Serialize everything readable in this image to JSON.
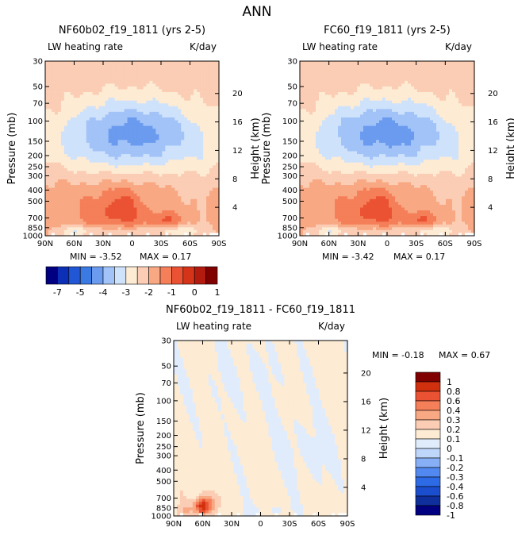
{
  "figure": {
    "title": "ANN"
  },
  "colors": {
    "main": [
      "#000080",
      "#0c2fb5",
      "#2156d5",
      "#3b79e3",
      "#6a9bef",
      "#a2c3f7",
      "#cfe2fb",
      "#fdebd4",
      "#fbcdb4",
      "#f8a883",
      "#f47f58",
      "#eb5233",
      "#d63419",
      "#b31b0e",
      "#800000"
    ],
    "diff": [
      "#000080",
      "#0f2f9c",
      "#1b4ecf",
      "#2d6ae6",
      "#5289f0",
      "#86aff6",
      "#bfd6fb",
      "#e0ecfc",
      "#fdebd4",
      "#fbcdb4",
      "#f8a883",
      "#f47f58",
      "#eb5233",
      "#d0300d",
      "#800000"
    ]
  },
  "chart_data": [
    {
      "type": "heatmap",
      "title": "NF60b02_f19_1811 (yrs 2-5)",
      "left_label": "LW heating rate",
      "right_label": "K/day",
      "xlabel": "",
      "ylabel": "Pressure (mb)",
      "y2label": "Height (km)",
      "x_ticks": [
        "90N",
        "60N",
        "30N",
        "0",
        "30S",
        "60S",
        "90S"
      ],
      "y_ticks": [
        "30",
        "50",
        "70",
        "100",
        "150",
        "200",
        "250",
        "300",
        "400",
        "500",
        "700",
        "850",
        "1000"
      ],
      "y2_ticks": [
        "20",
        "16",
        "12",
        "8",
        "4"
      ],
      "min_text": "MIN =   -3.52",
      "max_text": "MAX =    0.17",
      "min": -3.52,
      "max": 0.17
    },
    {
      "type": "heatmap",
      "title": "FC60_f19_1811 (yrs 2-5)",
      "left_label": "LW heating rate",
      "right_label": "K/day",
      "xlabel": "",
      "ylabel": "Pressure (mb)",
      "y2label": "Height (km)",
      "x_ticks": [
        "90N",
        "60N",
        "30N",
        "0",
        "30S",
        "60S",
        "90S"
      ],
      "y_ticks": [
        "30",
        "50",
        "70",
        "100",
        "150",
        "200",
        "250",
        "300",
        "400",
        "500",
        "700",
        "850",
        "1000"
      ],
      "y2_ticks": [
        "20",
        "16",
        "12",
        "8",
        "4"
      ],
      "min_text": "MIN =   -3.42",
      "max_text": "MAX =    0.17",
      "min": -3.42,
      "max": 0.17
    },
    {
      "type": "heatmap",
      "title": "NF60b02_f19_1811 - FC60_f19_1811",
      "left_label": "LW heating rate",
      "right_label": "K/day",
      "xlabel": "",
      "ylabel": "Pressure (mb)",
      "y2label": "Height (km)",
      "x_ticks": [
        "90N",
        "60N",
        "30N",
        "0",
        "30S",
        "60S",
        "90S"
      ],
      "y_ticks": [
        "30",
        "50",
        "70",
        "100",
        "150",
        "200",
        "250",
        "300",
        "400",
        "500",
        "700",
        "850",
        "1000"
      ],
      "y2_ticks": [
        "20",
        "16",
        "12",
        "8",
        "4"
      ],
      "min_text": "MIN =   -0.18",
      "max_text": "MAX =    0.67",
      "min": -0.18,
      "max": 0.67
    }
  ],
  "colorbars": {
    "main": {
      "orientation": "horizontal",
      "labels": [
        "-7",
        "-5",
        "-4",
        "-3",
        "-2",
        "-1",
        "0",
        "1"
      ]
    },
    "diff": {
      "orientation": "vertical",
      "labels": [
        "1",
        "0.8",
        "0.6",
        "0.4",
        "0.3",
        "0.2",
        "0.1",
        "0",
        "-0.1",
        "-0.2",
        "-0.3",
        "-0.4",
        "-0.6",
        "-0.8",
        "-1"
      ]
    }
  }
}
